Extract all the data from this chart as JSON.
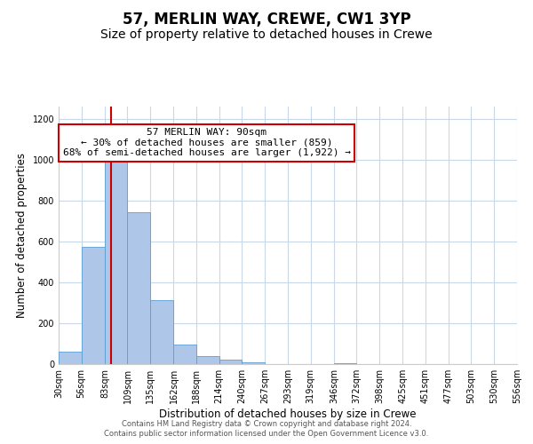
{
  "title": "57, MERLIN WAY, CREWE, CW1 3YP",
  "subtitle": "Size of property relative to detached houses in Crewe",
  "xlabel": "Distribution of detached houses by size in Crewe",
  "ylabel": "Number of detached properties",
  "bar_edges": [
    30,
    56,
    83,
    109,
    135,
    162,
    188,
    214,
    240,
    267,
    293,
    319,
    346,
    372,
    398,
    425,
    451,
    477,
    503,
    530,
    556
  ],
  "bar_heights": [
    60,
    575,
    1005,
    745,
    315,
    95,
    40,
    20,
    10,
    0,
    0,
    0,
    5,
    0,
    0,
    0,
    0,
    0,
    0,
    0
  ],
  "bar_color": "#aec6e8",
  "bar_edgecolor": "#5a9fd4",
  "property_size": 90,
  "vline_color": "#cc0000",
  "annotation_text": "57 MERLIN WAY: 90sqm\n← 30% of detached houses are smaller (859)\n68% of semi-detached houses are larger (1,922) →",
  "annotation_box_color": "#ffffff",
  "annotation_box_edgecolor": "#cc0000",
  "ylim": [
    0,
    1260
  ],
  "yticks": [
    0,
    200,
    400,
    600,
    800,
    1000,
    1200
  ],
  "footer_line1": "Contains HM Land Registry data © Crown copyright and database right 2024.",
  "footer_line2": "Contains public sector information licensed under the Open Government Licence v3.0.",
  "bg_color": "#ffffff",
  "grid_color": "#c8d8e8",
  "title_fontsize": 12,
  "subtitle_fontsize": 10,
  "axis_label_fontsize": 8.5,
  "tick_fontsize": 7,
  "footer_fontsize": 6,
  "annotation_fontsize": 8
}
